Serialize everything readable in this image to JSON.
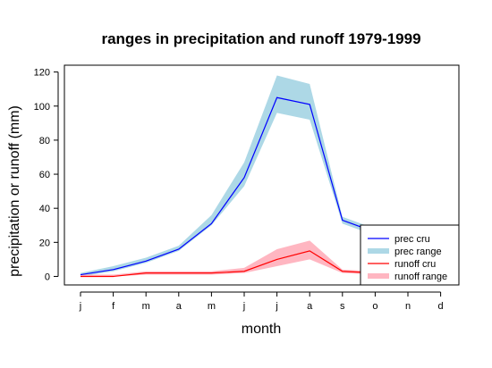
{
  "chart_data": {
    "type": "line",
    "title": "ranges in precipitation and runoff 1979-1999",
    "xlabel": "month",
    "ylabel": "precipitation or runoff (mm)",
    "categories": [
      "j",
      "f",
      "m",
      "a",
      "m",
      "j",
      "j",
      "a",
      "s",
      "o",
      "n",
      "d"
    ],
    "yticks": [
      0,
      20,
      40,
      60,
      80,
      100,
      120
    ],
    "ylim": [
      -5,
      124
    ],
    "legend_position": "bottom-right",
    "series": [
      {
        "name": "prec cru",
        "kind": "line",
        "color": "#0000ff",
        "values": [
          1,
          4,
          9,
          16,
          31,
          58,
          105,
          101,
          33,
          26,
          18,
          8
        ]
      },
      {
        "name": "prec range",
        "kind": "band",
        "color": "#add8e6",
        "low": [
          0,
          3,
          8,
          15,
          30,
          53,
          96,
          92,
          31,
          24,
          16,
          7
        ],
        "high": [
          2,
          6,
          11,
          18,
          36,
          67,
          118,
          113,
          35,
          28,
          20,
          9
        ]
      },
      {
        "name": "runoff cru",
        "kind": "line",
        "color": "#ff0000",
        "values": [
          0,
          0,
          2,
          2,
          2,
          3,
          10,
          15,
          3,
          2,
          1,
          0
        ]
      },
      {
        "name": "runoff range",
        "kind": "band",
        "color": "#ffb6c1",
        "low": [
          0,
          0,
          1,
          1,
          1,
          2,
          6,
          10,
          2,
          1,
          0,
          0
        ],
        "high": [
          1,
          1,
          3,
          3,
          3,
          5,
          16,
          21,
          4,
          3,
          2,
          1
        ]
      }
    ]
  }
}
